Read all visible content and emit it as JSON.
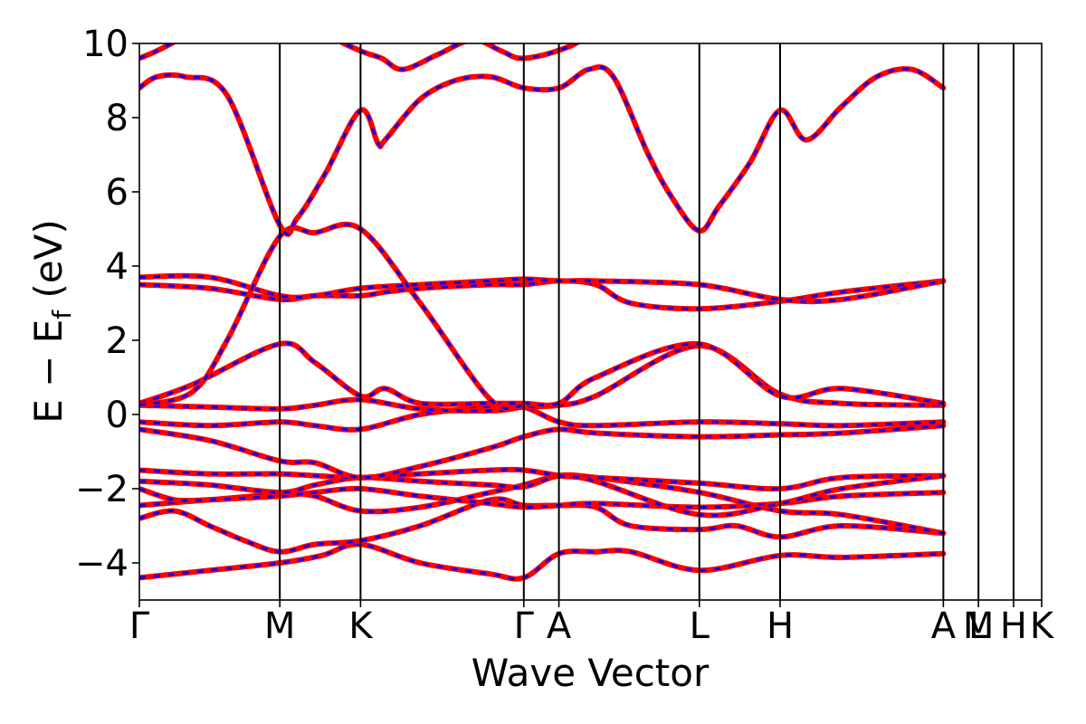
{
  "chart_data": {
    "type": "line",
    "xlabel": "Wave Vector",
    "ylabel": "E − Ef (eV)",
    "ylabel_parts": {
      "main": "E − E",
      "sub": "f",
      "unit": " (eV)"
    },
    "ylim": [
      -5,
      10
    ],
    "yticks": [
      -4,
      -2,
      0,
      2,
      4,
      6,
      8,
      10
    ],
    "xlim": [
      0,
      25.7
    ],
    "kpoints": [
      {
        "label": "Γ",
        "x": 0
      },
      {
        "label": "M",
        "x": 4.0
      },
      {
        "label": "K",
        "x": 6.3
      },
      {
        "label": "Γ",
        "x": 10.95
      },
      {
        "label": "A",
        "x": 11.95
      },
      {
        "label": "L",
        "x": 15.95
      },
      {
        "label": "H",
        "x": 18.25
      },
      {
        "label": "A",
        "x": 22.9
      },
      {
        "label": "L",
        "x": 23.9
      },
      {
        "label": "M",
        "x": 23.9
      },
      {
        "label": "H",
        "x": 24.9
      },
      {
        "label": "K",
        "x": 25.7
      }
    ],
    "series_styles": [
      {
        "color": "#ff0000",
        "style": "solid"
      },
      {
        "color": "#0000ff",
        "style": "dashed"
      }
    ],
    "bands": [
      {
        "x": [
          0,
          2,
          4,
          5.2,
          6.3,
          8,
          10,
          10.95,
          11.95,
          13,
          14,
          15.95,
          18.25,
          20,
          22.9
        ],
        "y": [
          -4.4,
          -4.2,
          -4.0,
          -3.8,
          -3.5,
          -4.0,
          -4.3,
          -4.4,
          -3.75,
          -3.7,
          -3.7,
          -4.2,
          -3.8,
          -3.85,
          -3.75
        ]
      },
      {
        "x": [
          0,
          1,
          2,
          3,
          4,
          5,
          6.3,
          8,
          10,
          10.95,
          11.95,
          13,
          14,
          15.95,
          17,
          18.25,
          20,
          22.9
        ],
        "y": [
          -2.8,
          -2.6,
          -3.0,
          -3.4,
          -3.7,
          -3.5,
          -3.4,
          -3.0,
          -2.3,
          -2.45,
          -2.45,
          -2.5,
          -3.0,
          -3.1,
          -3.0,
          -3.3,
          -3.0,
          -3.2
        ]
      },
      {
        "x": [
          0,
          2,
          4,
          5,
          6.3,
          8,
          10,
          10.95,
          11.95,
          13,
          15.95,
          18.25,
          20,
          22.9
        ],
        "y": [
          -2.45,
          -2.3,
          -2.15,
          -2.2,
          -2.6,
          -2.5,
          -2.1,
          -1.9,
          -1.65,
          -1.7,
          -2.1,
          -2.6,
          -2.7,
          -3.2
        ]
      },
      {
        "x": [
          0,
          1,
          2,
          3,
          4,
          5,
          6.3,
          8,
          10,
          10.95,
          11.95,
          13,
          15.95,
          18.25,
          20,
          22.9
        ],
        "y": [
          -2.0,
          -2.3,
          -2.3,
          -2.25,
          -2.2,
          -2.1,
          -2.0,
          -2.2,
          -2.4,
          -2.5,
          -2.45,
          -2.4,
          -2.5,
          -2.4,
          -2.2,
          -2.1
        ]
      },
      {
        "x": [
          0,
          2,
          4,
          5,
          6.3,
          8,
          10,
          10.95,
          11.95,
          13,
          15.95,
          18.25,
          20,
          22.9
        ],
        "y": [
          -1.8,
          -1.9,
          -2.1,
          -1.9,
          -1.7,
          -1.8,
          -1.9,
          -1.95,
          -1.65,
          -1.7,
          -1.85,
          -2.0,
          -1.7,
          -1.65
        ]
      },
      {
        "x": [
          0,
          2,
          4,
          5,
          6.3,
          8,
          10,
          10.95,
          11.95,
          13,
          15.95,
          18.25,
          20,
          22.9
        ],
        "y": [
          -1.5,
          -1.6,
          -1.6,
          -1.65,
          -1.7,
          -1.6,
          -1.5,
          -1.5,
          -1.65,
          -1.8,
          -2.7,
          -2.4,
          -2.0,
          -1.65
        ]
      },
      {
        "x": [
          0,
          2,
          4,
          5,
          6.3,
          8,
          10,
          10.95,
          11.95,
          13,
          15.95,
          18.25,
          20,
          22.9
        ],
        "y": [
          -0.4,
          -0.7,
          -1.25,
          -1.3,
          -1.7,
          -1.4,
          -0.9,
          -0.6,
          -0.4,
          -0.5,
          -0.6,
          -0.55,
          -0.5,
          -0.3
        ]
      },
      {
        "x": [
          0,
          2,
          4,
          5,
          6.3,
          8,
          10,
          10.95,
          11.95,
          13,
          15.95,
          18.25,
          20,
          22.9
        ],
        "y": [
          -0.2,
          -0.3,
          -0.2,
          -0.3,
          -0.4,
          0.0,
          0.2,
          0.2,
          -0.2,
          -0.3,
          -0.2,
          -0.25,
          -0.3,
          -0.2
        ]
      },
      {
        "x": [
          0,
          2,
          4,
          5,
          6.3,
          8,
          10,
          10.95,
          11.95,
          13,
          15.95,
          18.25,
          20,
          22.9
        ],
        "y": [
          0.25,
          0.2,
          0.15,
          0.25,
          0.4,
          0.15,
          0.1,
          0.2,
          0.25,
          0.5,
          1.85,
          0.55,
          0.3,
          0.25
        ]
      },
      {
        "x": [
          0,
          1.5,
          4,
          5,
          6.3,
          7,
          8,
          10,
          10.95,
          11.95,
          13,
          15.95,
          18.25,
          20,
          22.9
        ],
        "y": [
          0.3,
          0.8,
          1.9,
          1.4,
          0.5,
          0.7,
          0.3,
          0.3,
          0.3,
          0.3,
          1.0,
          1.9,
          0.5,
          0.7,
          0.3
        ]
      },
      {
        "x": [
          0,
          2,
          4,
          5,
          6.3,
          7,
          8,
          10,
          10.95,
          11.95,
          13,
          14,
          15.95,
          18.25,
          20,
          22.9
        ],
        "y": [
          3.5,
          3.4,
          3.1,
          3.2,
          3.2,
          3.3,
          3.4,
          3.5,
          3.5,
          3.6,
          3.5,
          3.0,
          2.85,
          3.05,
          3.3,
          3.6
        ]
      },
      {
        "x": [
          0,
          2,
          4,
          5,
          6.3,
          8,
          10,
          10.95,
          11.95,
          13,
          15.95,
          18.25,
          20,
          22.9
        ],
        "y": [
          3.7,
          3.7,
          3.2,
          3.2,
          3.4,
          3.5,
          3.6,
          3.65,
          3.6,
          3.6,
          3.5,
          3.1,
          3.1,
          3.6
        ]
      },
      {
        "x": [
          0,
          1.5,
          2.5,
          4,
          5,
          6.3,
          8,
          10,
          10.95
        ],
        "y": [
          0.25,
          0.6,
          2.0,
          4.8,
          4.9,
          5.0,
          3.0,
          0.4,
          0.25
        ]
      },
      {
        "x": [
          0,
          0.5,
          1.3,
          2.5,
          4,
          4.5,
          5.3,
          6.3,
          6.8,
          7,
          8,
          9,
          10,
          10.95,
          11.95,
          12.8,
          13.5,
          14.5,
          15.2,
          15.95,
          16.5,
          17.4,
          18.25,
          19,
          20,
          21,
          22,
          22.9
        ],
        "y": [
          8.8,
          9.1,
          9.1,
          8.6,
          5.1,
          5.3,
          6.5,
          8.2,
          7.3,
          7.4,
          8.5,
          9.0,
          9.1,
          8.8,
          8.8,
          9.3,
          9.1,
          7.0,
          5.8,
          4.95,
          5.6,
          6.8,
          8.2,
          7.4,
          8.3,
          9.1,
          9.3,
          8.8
        ]
      },
      {
        "x": [
          0,
          0.5,
          1.3,
          2,
          3,
          4,
          4.8,
          5.5,
          6.3,
          6.9,
          7.5,
          8.5,
          9.5,
          10.3,
          10.95,
          12.2,
          13.6,
          14.5,
          15.2,
          15.95,
          17,
          18.25,
          19,
          19.6,
          20,
          21,
          22.5,
          22.9
        ],
        "y": [
          9.6,
          9.8,
          10.2,
          10.6,
          11.2,
          11.8,
          11,
          10.2,
          9.8,
          9.6,
          9.3,
          9.7,
          10.1,
          9.8,
          9.6,
          9.9,
          10.6,
          10.5,
          10.3,
          10.1,
          10.7,
          11.5,
          10.8,
          10.3,
          10.2,
          10.1,
          10.4,
          10.6
        ]
      }
    ]
  }
}
